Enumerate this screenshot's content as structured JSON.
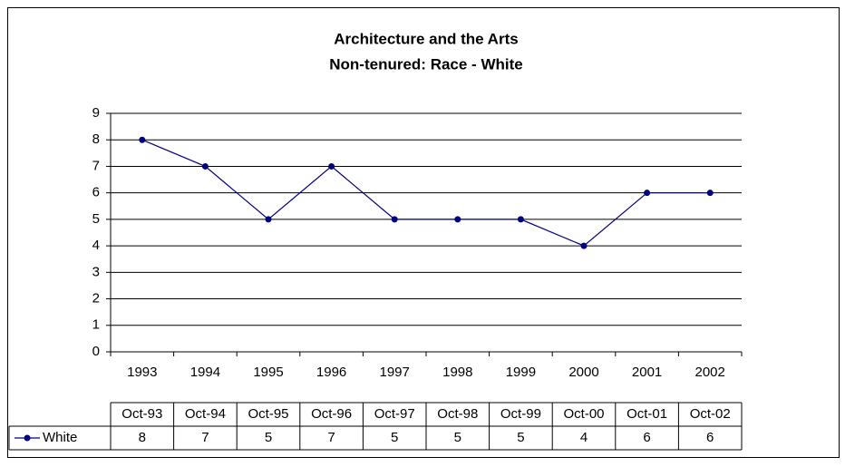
{
  "chart_data": {
    "type": "line",
    "title": "Architecture and the Arts",
    "subtitle": "Non-tenured: Race - White",
    "categories": [
      "1993",
      "1994",
      "1995",
      "1996",
      "1997",
      "1998",
      "1999",
      "2000",
      "2001",
      "2002"
    ],
    "table_dates": [
      "Oct-93",
      "Oct-94",
      "Oct-95",
      "Oct-96",
      "Oct-97",
      "Oct-98",
      "Oct-99",
      "Oct-00",
      "Oct-01",
      "Oct-02"
    ],
    "series": [
      {
        "name": "White",
        "color": "#000080",
        "values": [
          8,
          7,
          5,
          7,
          5,
          5,
          5,
          4,
          6,
          6
        ]
      }
    ],
    "ylim": [
      0,
      9
    ],
    "yticks": [
      0,
      1,
      2,
      3,
      4,
      5,
      6,
      7,
      8,
      9
    ],
    "grid": true
  }
}
